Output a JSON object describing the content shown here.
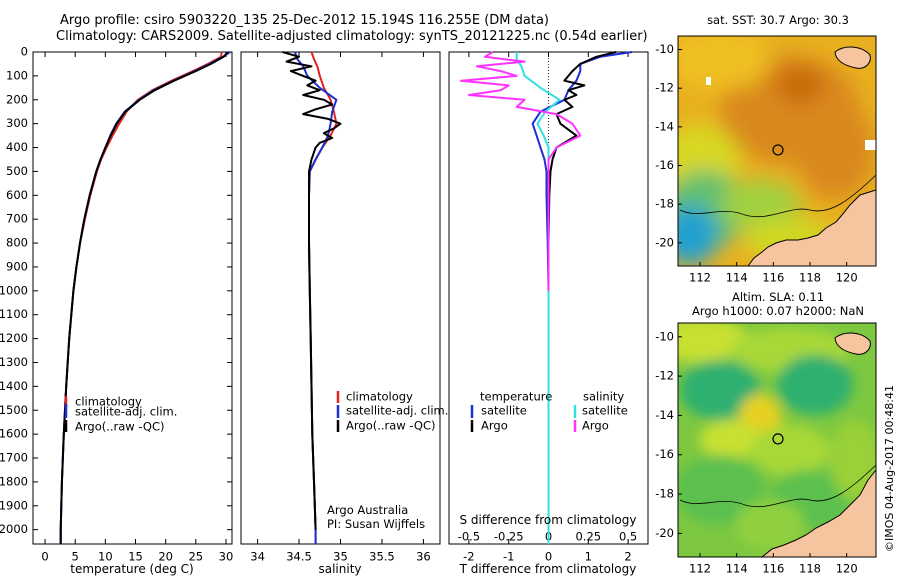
{
  "header": {
    "line1": "Argo profile: csiro 5903220_135 25-Dec-2012 15.194S 116.255E (DM data)",
    "line2": "Climatology: CARS2009. Satellite-adjusted climatology: synTS_20121225.nc (0.54d earlier)"
  },
  "colors": {
    "climatology": "#e8201a",
    "satellite": "#1c2fd6",
    "argo": "#000000",
    "sal_satellite": "#33e0e0",
    "sal_argo": "#ff33ff",
    "land": "#f7c4a0"
  },
  "depth_ticks": [
    0,
    100,
    200,
    300,
    400,
    500,
    600,
    700,
    800,
    900,
    1000,
    1100,
    1200,
    1300,
    1400,
    1500,
    1600,
    1700,
    1800,
    1900,
    2000
  ],
  "chart_data": [
    {
      "type": "line",
      "id": "temperature",
      "xlabel": "temperature (deg C)",
      "ylabel": "",
      "xlim": [
        -2,
        31
      ],
      "ylim": [
        2060,
        0
      ],
      "xticks": [
        0,
        5,
        10,
        15,
        20,
        25,
        30
      ],
      "legend": [
        "climatology",
        "satellite-adj. clim.",
        "Argo(..raw -QC)"
      ],
      "series": [
        {
          "name": "climatology",
          "depth": [
            0,
            20,
            50,
            80,
            120,
            160,
            200,
            250,
            300,
            350,
            400,
            450,
            500,
            600,
            700,
            800,
            900,
            1000,
            1200,
            1400,
            1600,
            1800,
            2000,
            2060
          ],
          "values": [
            29.3,
            29.2,
            27,
            24.5,
            21,
            17.8,
            15.4,
            13.5,
            12.3,
            11.2,
            10.2,
            9.3,
            8.6,
            7.5,
            6.6,
            5.8,
            5.2,
            4.7,
            4.0,
            3.5,
            3.1,
            2.8,
            2.6,
            2.6
          ]
        },
        {
          "name": "satellite-adj. clim.",
          "depth": [
            0,
            20,
            50,
            80,
            120,
            160,
            200,
            250,
            300,
            350,
            400,
            450,
            500,
            600,
            700,
            800,
            900,
            1000,
            1200,
            1400,
            1600,
            1800,
            2000,
            2060
          ],
          "values": [
            30.7,
            29.5,
            27.3,
            24.8,
            21.3,
            18.0,
            15.6,
            13.2,
            11.8,
            10.8,
            10.0,
            9.2,
            8.5,
            7.4,
            6.5,
            5.8,
            5.2,
            4.7,
            4.0,
            3.5,
            3.1,
            2.8,
            2.6,
            2.6
          ]
        },
        {
          "name": "Argo(..raw -QC)",
          "depth": [
            0,
            20,
            50,
            80,
            120,
            160,
            200,
            250,
            300,
            350,
            400,
            450,
            500,
            600,
            700,
            800,
            900,
            1000,
            1200,
            1400,
            1600,
            1800,
            2000,
            2060
          ],
          "values": [
            30.3,
            29.6,
            27.5,
            25.0,
            21.4,
            18.2,
            15.7,
            13.3,
            11.9,
            10.9,
            10.0,
            9.2,
            8.5,
            7.4,
            6.5,
            5.8,
            5.2,
            4.7,
            4.0,
            3.5,
            3.1,
            2.8,
            2.6,
            2.6
          ]
        }
      ]
    },
    {
      "type": "line",
      "id": "salinity",
      "xlabel": "salinity",
      "ylabel": "",
      "xlim": [
        33.8,
        36.2
      ],
      "ylim": [
        2060,
        0
      ],
      "xticks": [
        34,
        34.5,
        35,
        35.5,
        36
      ],
      "legend": [
        "climatology",
        "satellite-adj. clim.",
        "Argo(..raw -QC)"
      ],
      "annotation": [
        "Argo Australia",
        "PI: Susan Wijffels"
      ],
      "series": [
        {
          "name": "climatology",
          "depth": [
            0,
            30,
            60,
            100,
            150,
            200,
            250,
            300,
            350,
            400,
            450,
            500,
            600,
            800,
            1000,
            1200,
            1400,
            1600,
            1800,
            2000,
            2060
          ],
          "values": [
            34.65,
            34.68,
            34.72,
            34.75,
            34.8,
            34.88,
            34.92,
            34.95,
            34.88,
            34.78,
            34.7,
            34.63,
            34.62,
            34.62,
            34.63,
            34.64,
            34.65,
            34.66,
            34.68,
            34.7,
            34.7
          ]
        },
        {
          "name": "satellite-adj. clim.",
          "depth": [
            0,
            30,
            60,
            100,
            150,
            200,
            250,
            300,
            350,
            400,
            450,
            500,
            600,
            800,
            1000,
            1200,
            1400,
            1600,
            1800,
            2000,
            2060
          ],
          "values": [
            34.45,
            34.48,
            34.55,
            34.6,
            34.75,
            34.95,
            34.9,
            34.88,
            34.85,
            34.78,
            34.7,
            34.63,
            34.62,
            34.62,
            34.63,
            34.64,
            34.65,
            34.66,
            34.68,
            34.7,
            34.7
          ]
        },
        {
          "name": "Argo(..raw -QC)",
          "depth": [
            0,
            20,
            40,
            60,
            80,
            100,
            120,
            140,
            160,
            180,
            200,
            220,
            240,
            260,
            280,
            300,
            320,
            340,
            360,
            380,
            400,
            450,
            500,
            600,
            800,
            1000,
            1200,
            1400,
            1600,
            1800,
            2000
          ],
          "values": [
            34.3,
            34.5,
            34.35,
            34.65,
            34.4,
            34.55,
            34.7,
            34.6,
            34.75,
            34.55,
            34.8,
            34.9,
            34.7,
            34.55,
            34.85,
            35.0,
            34.92,
            34.8,
            34.9,
            34.75,
            34.7,
            34.65,
            34.62,
            34.62,
            34.62,
            34.63,
            34.64,
            34.65,
            34.66,
            34.68,
            34.7
          ]
        }
      ]
    },
    {
      "type": "line",
      "id": "difference",
      "xlabel": "T difference from climatology",
      "xlabel2": "S difference from climatology",
      "xlim": [
        -2.5,
        2.5
      ],
      "ylim": [
        2060,
        0
      ],
      "xticks": [
        -2,
        -1,
        0,
        1,
        2
      ],
      "xticks2": [
        -0.5,
        -0.25,
        0,
        0.25,
        0.5
      ],
      "legend_titles": [
        "temperature",
        "salinity"
      ],
      "legend": [
        "satellite",
        "Argo",
        "satellite",
        "Argo"
      ],
      "series": [
        {
          "name": "T satellite",
          "depth": [
            0,
            20,
            50,
            80,
            120,
            160,
            200,
            250,
            300,
            350,
            400,
            450,
            500,
            600,
            800,
            1000,
            1200,
            1600,
            2000,
            2060
          ],
          "values": [
            2.1,
            1.3,
            0.8,
            0.8,
            0.7,
            0.5,
            0.4,
            -0.2,
            -0.4,
            -0.3,
            -0.2,
            -0.1,
            -0.05,
            -0.05,
            -0.02,
            0,
            0,
            0,
            0,
            0
          ]
        },
        {
          "name": "T Argo",
          "depth": [
            0,
            20,
            50,
            80,
            100,
            120,
            140,
            160,
            180,
            200,
            230,
            260,
            300,
            350,
            400,
            450,
            500,
            600,
            800,
            1000,
            1200,
            1600,
            2000
          ],
          "values": [
            1.7,
            1.2,
            0.8,
            0.6,
            0.5,
            0.4,
            0.9,
            0.5,
            0.7,
            0.4,
            0.6,
            0.2,
            0.3,
            0.7,
            0.2,
            0.1,
            0.05,
            0.02,
            0,
            0,
            0,
            0,
            0
          ]
        },
        {
          "name": "S satellite",
          "depth": [
            0,
            30,
            60,
            100,
            150,
            200,
            250,
            300,
            350,
            400,
            450,
            500,
            600,
            800,
            1000,
            1600,
            2000,
            2060
          ],
          "values": [
            -0.2,
            -0.2,
            -0.17,
            -0.15,
            -0.05,
            0.07,
            -0.02,
            -0.07,
            -0.03,
            0,
            0,
            0,
            0,
            0,
            0,
            0,
            0,
            0
          ]
        },
        {
          "name": "S Argo",
          "depth": [
            0,
            20,
            40,
            60,
            80,
            100,
            120,
            140,
            160,
            180,
            200,
            230,
            260,
            300,
            350,
            400,
            450,
            500,
            600,
            800,
            1000
          ],
          "values": [
            -0.35,
            -0.4,
            -0.15,
            -0.45,
            -0.3,
            -0.2,
            -0.55,
            -0.25,
            -0.3,
            -0.5,
            -0.15,
            -0.2,
            0.05,
            0.15,
            0.2,
            0.05,
            0,
            0,
            0,
            0,
            0
          ]
        }
      ]
    }
  ],
  "maps": [
    {
      "id": "sst",
      "title": "sat. SST: 30.7  Argo: 30.3",
      "x_ticks": [
        112,
        114,
        116,
        118,
        120
      ],
      "y_ticks": [
        -10,
        -12,
        -14,
        -16,
        -18,
        -20
      ],
      "xlim": [
        110.8,
        121.6
      ],
      "ylim": [
        -21.2,
        -9.3
      ],
      "marker": [
        116.255,
        -15.194
      ]
    },
    {
      "id": "sla",
      "title_lines": [
        "Altim. SLA: 0.11",
        "Argo h1000: 0.07 h2000: NaN"
      ],
      "x_ticks": [
        112,
        114,
        116,
        118,
        120
      ],
      "y_ticks": [
        -10,
        -12,
        -14,
        -16,
        -18,
        -20
      ],
      "xlim": [
        110.8,
        121.6
      ],
      "ylim": [
        -21.2,
        -9.3
      ],
      "marker": [
        116.255,
        -15.194
      ]
    }
  ],
  "credit": "©IMOS 04-Aug-2017 00:48:41"
}
